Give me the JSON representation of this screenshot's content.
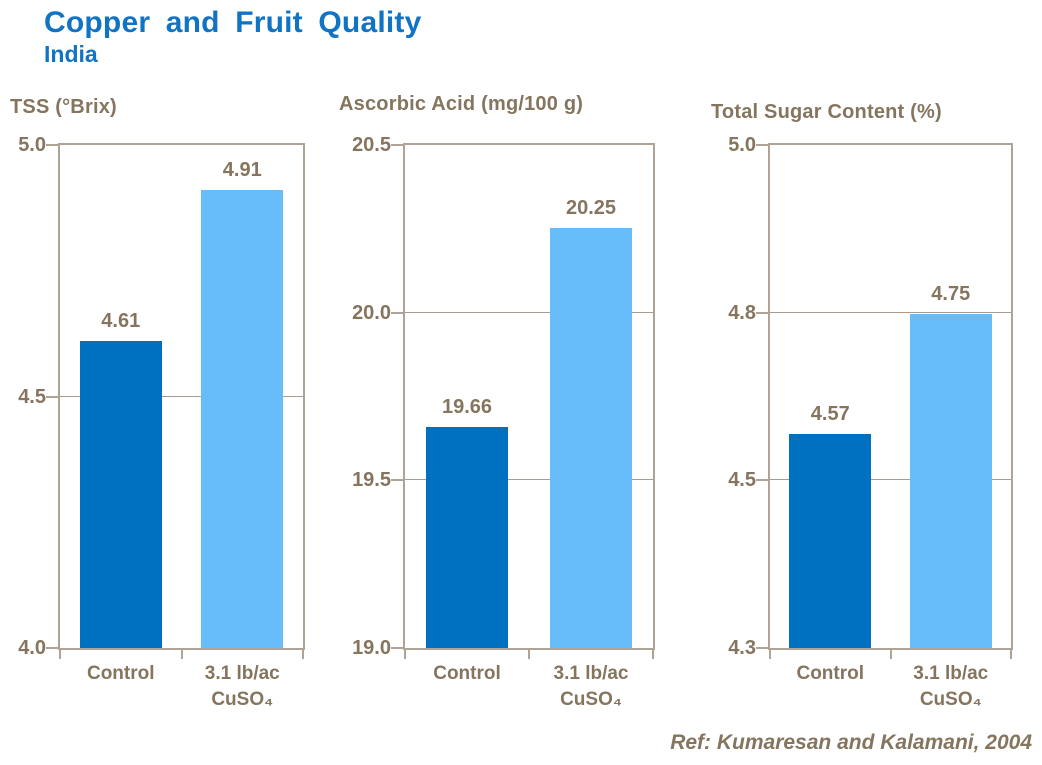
{
  "header": {
    "title": "Copper and Fruit Quality",
    "subtitle": "India"
  },
  "footer": {
    "ref": "Ref: Kumaresan and Kalamani, 2004"
  },
  "colors": {
    "title_blue": "#1173C4",
    "axis_text": "#85755E",
    "axis_border": "#AFA396",
    "gridline": "#A89C8E",
    "series": [
      "#0070C0",
      "#66BDFA"
    ]
  },
  "series_names": [
    "Control",
    "3.1 lb/ac CuSO₄"
  ],
  "chart_data": [
    {
      "type": "bar",
      "title": "TSS (°Brix)",
      "categories": [
        "Control",
        "3.1 lb/ac\nCuSO₄"
      ],
      "values": [
        4.61,
        4.91
      ],
      "value_labels": [
        "4.61",
        "4.91"
      ],
      "yticks": [
        "5.0",
        "4.5",
        "4.0"
      ],
      "ylim": [
        4.0,
        5.0
      ],
      "grid": true,
      "legend": "none",
      "display": {
        "bar_top_fractions": [
          0.61,
          0.911
        ]
      }
    },
    {
      "type": "bar",
      "title": "Ascorbic Acid (mg/100 g)",
      "categories": [
        "Control",
        "3.1 lb/ac\nCuSO₄"
      ],
      "values": [
        19.66,
        20.25
      ],
      "value_labels": [
        "19.66",
        "20.25"
      ],
      "yticks": [
        "20.5",
        "20.0",
        "19.5",
        "19.0"
      ],
      "ylim": [
        19.0,
        20.5
      ],
      "grid": true,
      "legend": "none",
      "display": {
        "bar_top_fractions": [
          0.44,
          0.836
        ]
      }
    },
    {
      "type": "bar",
      "title": "Total Sugar Content (%)",
      "categories": [
        "Control",
        "3.1 lb/ac\nCuSO₄"
      ],
      "values": [
        4.57,
        4.75
      ],
      "value_labels": [
        "4.57",
        "4.75"
      ],
      "yticks": [
        "5.0",
        "4.8",
        "4.5",
        "4.3"
      ],
      "ylim": [
        4.3,
        5.0
      ],
      "yticks_equally_spaced": true,
      "grid": true,
      "legend": "none",
      "display": {
        "bar_top_fractions": [
          0.426,
          0.665
        ]
      }
    }
  ]
}
